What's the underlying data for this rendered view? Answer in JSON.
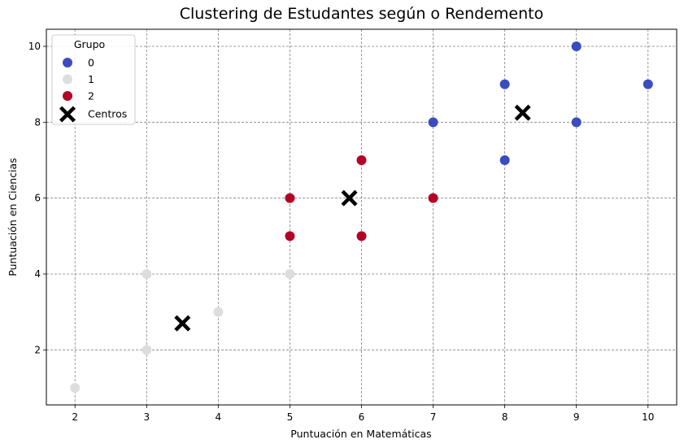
{
  "chart_data": {
    "type": "scatter",
    "title": "Clustering de Estudantes según o Rendemento",
    "xlabel": "Puntuación en Matemáticas",
    "ylabel": "Puntuación en Ciencias",
    "xlim": [
      1.6,
      10.4
    ],
    "ylim": [
      0.55,
      10.45
    ],
    "xticks": [
      2,
      3,
      4,
      5,
      6,
      7,
      8,
      9,
      10
    ],
    "yticks": [
      2,
      4,
      6,
      8,
      10
    ],
    "grid": true,
    "legend": {
      "title": "Grupo",
      "position": "upper left",
      "entries": [
        "0",
        "1",
        "2",
        "Centros"
      ]
    },
    "series": [
      {
        "name": "0",
        "color": "#3b4cc0",
        "marker": "circle",
        "points": [
          [
            7,
            8
          ],
          [
            8,
            9
          ],
          [
            8,
            7
          ],
          [
            9,
            10
          ],
          [
            9,
            8
          ],
          [
            10,
            9
          ]
        ]
      },
      {
        "name": "1",
        "color": "#dddddd",
        "marker": "circle",
        "points": [
          [
            2,
            1
          ],
          [
            3,
            2
          ],
          [
            3,
            4
          ],
          [
            4,
            3
          ],
          [
            5,
            4
          ]
        ]
      },
      {
        "name": "2",
        "color": "#b40426",
        "marker": "circle",
        "points": [
          [
            5,
            6
          ],
          [
            5,
            5
          ],
          [
            6,
            7
          ],
          [
            6,
            5
          ],
          [
            7,
            6
          ]
        ]
      },
      {
        "name": "Centros",
        "color": "#000000",
        "marker": "X",
        "points": [
          [
            3.5,
            2.7
          ],
          [
            5.83,
            6.0
          ],
          [
            8.25,
            8.25
          ]
        ]
      }
    ]
  }
}
